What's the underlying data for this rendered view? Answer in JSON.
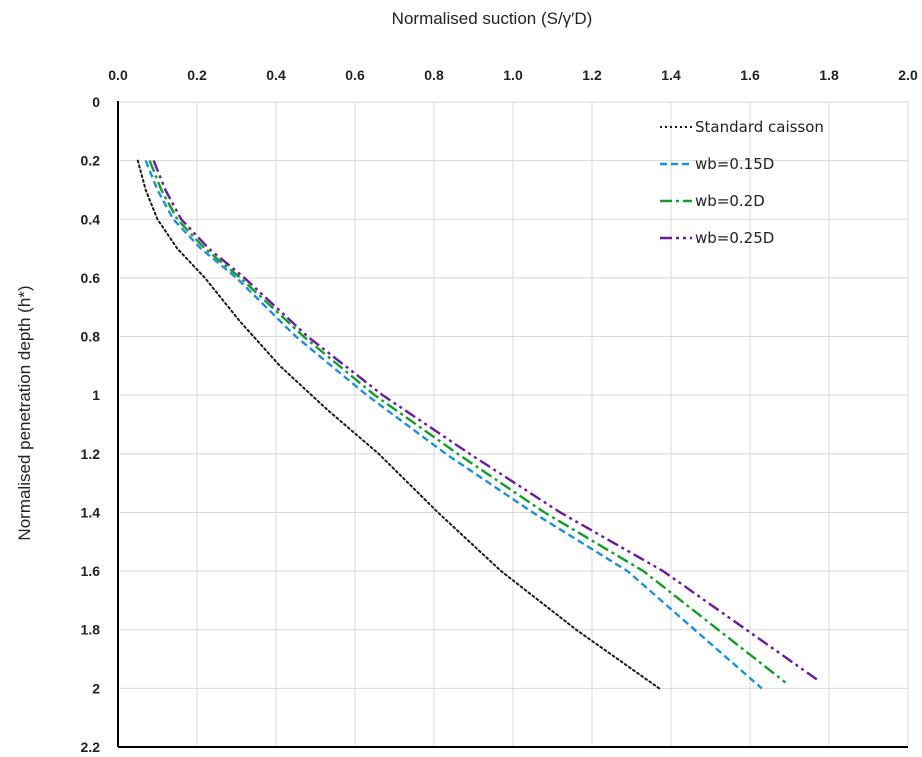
{
  "chart_data": {
    "type": "line",
    "xlabel": "Normalised suction (S/γ′D)",
    "ylabel": "Normalised penetration depth (h*)",
    "xlim": [
      0,
      2.0
    ],
    "ylim": [
      0,
      2.2
    ],
    "x_axis_position": "top",
    "y_axis_inverted": true,
    "grid": true,
    "legend_position": "top-right",
    "x_ticks": [
      "0.0",
      "0.2",
      "0.4",
      "0.6",
      "0.8",
      "1.0",
      "1.2",
      "1.4",
      "1.6",
      "1.8",
      "2.0"
    ],
    "y_ticks": [
      "0",
      "0.2",
      "0.4",
      "0.6",
      "0.8",
      "1",
      "1.2",
      "1.4",
      "1.6",
      "1.8",
      "2",
      "2.2"
    ],
    "series": [
      {
        "name": "Standard caisson",
        "color": "#1a1a1a",
        "dash": "dotted",
        "x": [
          0.05,
          0.07,
          0.1,
          0.15,
          0.22,
          0.31,
          0.41,
          0.53,
          0.66,
          0.81,
          0.97,
          1.16,
          1.37
        ],
        "y": [
          0.2,
          0.3,
          0.4,
          0.5,
          0.6,
          0.75,
          0.9,
          1.05,
          1.2,
          1.4,
          1.6,
          1.8,
          2.0
        ]
      },
      {
        "name": "wb=0.15D",
        "color": "#1f8fd8",
        "dash": "dashed",
        "x": [
          0.07,
          0.1,
          0.14,
          0.21,
          0.3,
          0.45,
          0.63,
          0.83,
          1.05,
          1.29,
          1.63
        ],
        "y": [
          0.2,
          0.3,
          0.4,
          0.5,
          0.6,
          0.8,
          1.0,
          1.2,
          1.4,
          1.6,
          2.0
        ]
      },
      {
        "name": "wb=0.2D",
        "color": "#159b2b",
        "dash": "dash-dot",
        "x": [
          0.08,
          0.11,
          0.15,
          0.22,
          0.31,
          0.47,
          0.65,
          0.86,
          1.08,
          1.33,
          1.69
        ],
        "y": [
          0.2,
          0.3,
          0.4,
          0.5,
          0.6,
          0.8,
          1.0,
          1.2,
          1.4,
          1.6,
          1.98
        ]
      },
      {
        "name": "wb=0.25D",
        "color": "#6a1b9a",
        "dash": "dash-dot-dot",
        "x": [
          0.09,
          0.12,
          0.16,
          0.23,
          0.32,
          0.48,
          0.67,
          0.89,
          1.12,
          1.38,
          1.77
        ],
        "y": [
          0.2,
          0.3,
          0.4,
          0.5,
          0.6,
          0.8,
          1.0,
          1.2,
          1.4,
          1.6,
          1.97
        ]
      }
    ]
  }
}
